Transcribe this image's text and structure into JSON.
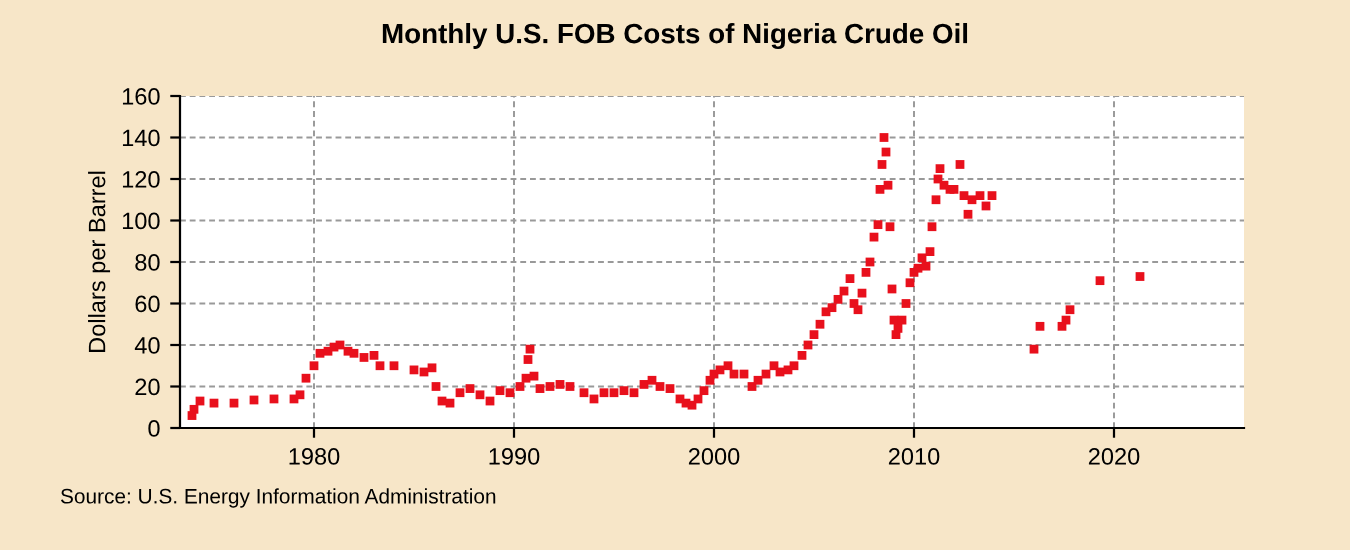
{
  "chart_data": {
    "type": "scatter",
    "title": "Monthly U.S. FOB Costs of Nigeria Crude Oil",
    "ylabel": "Dollars per Barrel",
    "annotations": [
      "Source: U.S. Energy Information Administration"
    ],
    "x": [
      1973.9,
      1974.0,
      1974.3,
      1975,
      1976,
      1977,
      1978,
      1979.0,
      1979.3,
      1979.6,
      1980.0,
      1980.3,
      1980.7,
      1981.0,
      1981.3,
      1981.7,
      1982,
      1982.5,
      1983,
      1983.3,
      1984,
      1985,
      1985.5,
      1985.9,
      1986.1,
      1986.4,
      1986.8,
      1987.3,
      1987.8,
      1988.3,
      1988.8,
      1989.3,
      1989.8,
      1990.3,
      1990.6,
      1990.7,
      1990.8,
      1991.0,
      1991.3,
      1991.8,
      1992.3,
      1992.8,
      1993.5,
      1994.0,
      1994.5,
      1995,
      1995.5,
      1996,
      1996.5,
      1996.9,
      1997.3,
      1997.8,
      1998.3,
      1998.6,
      1998.9,
      1999.2,
      1999.5,
      1999.8,
      2000.0,
      2000.3,
      2000.7,
      2001.0,
      2001.5,
      2001.9,
      2002.2,
      2002.6,
      2003.0,
      2003.3,
      2003.7,
      2004.0,
      2004.4,
      2004.7,
      2005.0,
      2005.3,
      2005.6,
      2005.9,
      2006.2,
      2006.5,
      2006.8,
      2007.0,
      2007.2,
      2007.4,
      2007.6,
      2007.8,
      2008.0,
      2008.2,
      2008.3,
      2008.4,
      2008.5,
      2008.6,
      2008.7,
      2008.8,
      2008.9,
      2009.0,
      2009.1,
      2009.2,
      2009.4,
      2009.6,
      2009.8,
      2010.0,
      2010.2,
      2010.4,
      2010.6,
      2010.8,
      2010.9,
      2011.1,
      2011.2,
      2011.3,
      2011.5,
      2011.8,
      2012.0,
      2012.3,
      2012.5,
      2012.7,
      2012.9,
      2013.3,
      2013.6,
      2013.9,
      2016.0,
      2016.3,
      2017.4,
      2017.6,
      2017.8,
      2019.3,
      2021.3
    ],
    "series": [
      {
        "color": "#e8101c",
        "values": [
          6,
          9,
          13,
          12,
          12,
          13.5,
          14,
          14,
          16,
          24,
          30,
          36,
          37,
          39,
          40,
          37,
          36,
          34,
          35,
          30,
          30,
          28,
          27,
          29,
          20,
          13,
          12,
          17,
          19,
          16,
          13,
          18,
          17,
          20,
          24,
          33,
          38,
          25,
          19,
          20,
          21,
          20,
          17,
          14,
          17,
          17,
          18,
          17,
          21,
          23,
          20,
          19,
          14,
          12,
          11,
          14,
          18,
          23,
          26,
          28,
          30,
          26,
          26,
          20,
          23,
          26,
          30,
          27,
          28,
          30,
          35,
          40,
          45,
          50,
          56,
          58,
          62,
          66,
          72,
          60,
          57,
          65,
          75,
          80,
          92,
          98,
          115,
          127,
          140,
          133,
          117,
          97,
          67,
          52,
          45,
          48,
          52,
          60,
          70,
          75,
          77,
          82,
          78,
          85,
          97,
          110,
          120,
          125,
          117,
          115,
          115,
          127,
          112,
          103,
          110,
          112,
          107,
          112,
          38,
          49,
          49,
          52,
          57,
          71,
          73
        ]
      }
    ],
    "xlim": [
      1973.3,
      2026.5
    ],
    "xticks": [
      1980,
      1990,
      2000,
      2010,
      2020
    ],
    "ylim": [
      0,
      160
    ],
    "yticks": [
      0,
      20,
      40,
      60,
      80,
      100,
      120,
      140,
      160
    ],
    "grid": true,
    "marker": "square"
  }
}
